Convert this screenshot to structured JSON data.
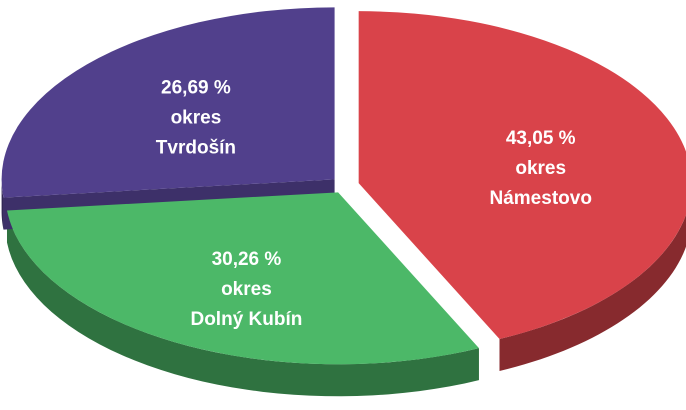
{
  "chart_data": {
    "type": "pie",
    "categories": [
      "okres Námestovo",
      "okres Dolný Kubín",
      "okres Tvrdošín"
    ],
    "values": [
      43.05,
      30.26,
      26.69
    ],
    "value_labels": [
      "43,05 %",
      "30,26 %",
      "26,69 %"
    ],
    "colors": [
      "#d9434a",
      "#4cb868",
      "#51408c"
    ]
  }
}
